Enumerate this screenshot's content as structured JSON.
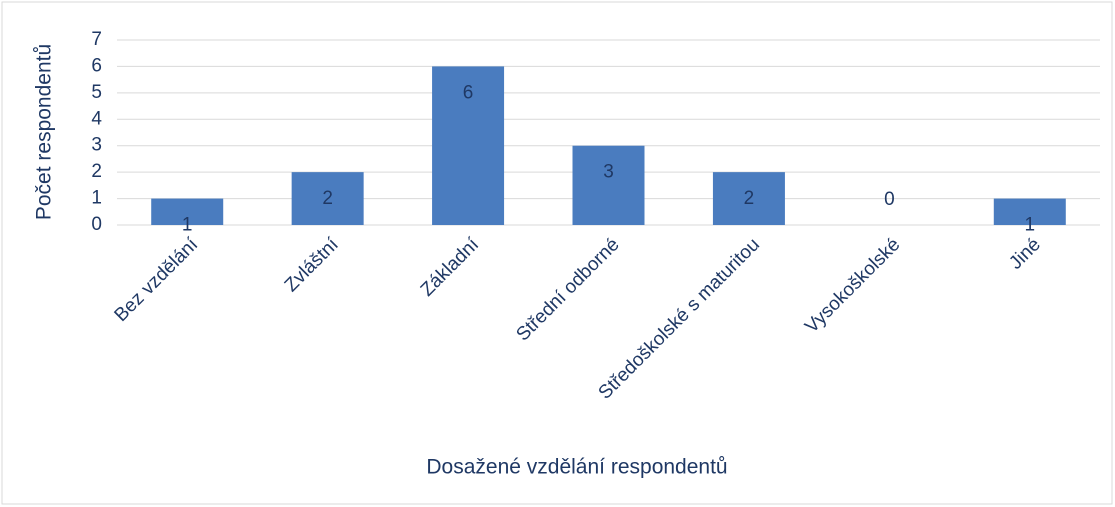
{
  "chart_data": {
    "type": "bar",
    "categories": [
      "Bez vzdělání",
      "Zvláštní",
      "Základní",
      "Střední odborné",
      "Středoškolské s maturitou",
      "Vysokoškolské",
      "Jiné"
    ],
    "values": [
      1,
      2,
      6,
      3,
      2,
      0,
      1
    ],
    "color": "#4a7cbf",
    "xlabel": "Dosažené vzdělání respondentů",
    "ylabel": "Počet respondentů",
    "ylim": [
      0,
      7
    ],
    "yticks": [
      0,
      1,
      2,
      3,
      4,
      5,
      6,
      7
    ],
    "grid": true
  }
}
